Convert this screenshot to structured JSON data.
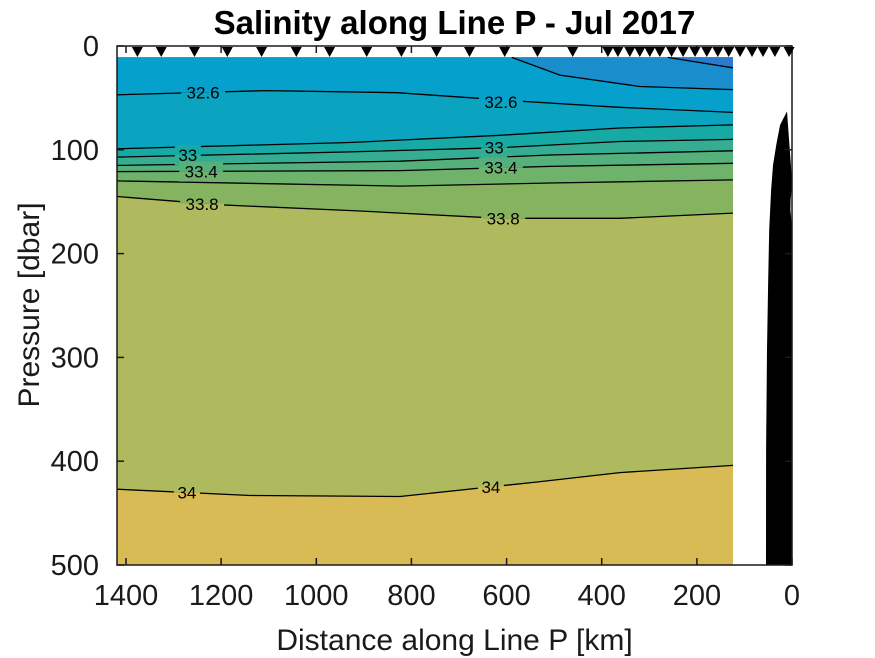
{
  "title": "Salinity along Line P - Jul 2017",
  "xlabel": "Distance along Line P [km]",
  "ylabel": "Pressure [dbar]",
  "chart_data": {
    "type": "filled-contour",
    "title": "Salinity along Line P - Jul 2017",
    "xlabel": "Distance along Line P [km]",
    "ylabel": "Pressure [dbar]",
    "xlim": [
      1400,
      0
    ],
    "ylim": [
      0,
      500
    ],
    "x_axis_reversed": true,
    "y_axis_reversed": true,
    "grid": false,
    "colorbar": false,
    "x_ticks": [
      {
        "label": "1400",
        "km": 1400
      },
      {
        "label": "1200",
        "km": 1200
      },
      {
        "label": "1000",
        "km": 1000
      },
      {
        "label": "800",
        "km": 800
      },
      {
        "label": "600",
        "km": 600
      },
      {
        "label": "400",
        "km": 400
      },
      {
        "label": "200",
        "km": 200
      },
      {
        "label": "0",
        "km": 0
      }
    ],
    "y_ticks": [
      {
        "label": "0",
        "dbar": 0
      },
      {
        "label": "100",
        "dbar": 100
      },
      {
        "label": "200",
        "dbar": 200
      },
      {
        "label": "300",
        "dbar": 300
      },
      {
        "label": "400",
        "dbar": 400
      },
      {
        "label": "500",
        "dbar": 500
      }
    ],
    "contour_interval": 0.2,
    "surface_min_dbar": 11,
    "coast_data_gap_km": 124,
    "station_marker": "filled-down-triangle",
    "station_distances_km": [
      1376,
      1326,
      1256,
      1187,
      1115,
      1042,
      972,
      894,
      821,
      747,
      678,
      604,
      535,
      461,
      387,
      366,
      341,
      320,
      299,
      278,
      253,
      229,
      204,
      179,
      156,
      133,
      109,
      84,
      61,
      36,
      6
    ],
    "bands": [
      {
        "min": null,
        "max": 32.2,
        "color": "#2b7ace"
      },
      {
        "min": 32.2,
        "max": 32.4,
        "color": "#1a8ecd"
      },
      {
        "min": 32.4,
        "max": 32.6,
        "color": "#06a0cc"
      },
      {
        "min": 32.6,
        "max": 32.8,
        "color": "#0aa3c0"
      },
      {
        "min": 32.8,
        "max": 33,
        "color": "#17aaa4"
      },
      {
        "min": 33,
        "max": 33.2,
        "color": "#35ad92"
      },
      {
        "min": 33.2,
        "max": 33.4,
        "color": "#55b07c"
      },
      {
        "min": 33.4,
        "max": 33.6,
        "color": "#6eb26c"
      },
      {
        "min": 33.6,
        "max": 33.8,
        "color": "#85b35f"
      },
      {
        "min": 33.8,
        "max": 34,
        "color": "#afba5e"
      },
      {
        "min": 34,
        "max": null,
        "color": "#d8bb55"
      }
    ],
    "contours": [
      {
        "level": 34,
        "closure": "top",
        "points": [
          [
            1419,
            427
          ],
          [
            1139,
            433
          ],
          [
            824,
            434
          ],
          [
            536,
            420
          ],
          [
            362,
            411
          ],
          [
            124,
            404
          ]
        ]
      },
      {
        "level": 33.8,
        "closure": "top",
        "points": [
          [
            1419,
            145
          ],
          [
            1203,
            153
          ],
          [
            908,
            159
          ],
          [
            614,
            166
          ],
          [
            362,
            166
          ],
          [
            124,
            161
          ]
        ]
      },
      {
        "level": 33.6,
        "closure": "top",
        "points": [
          [
            1419,
            130
          ],
          [
            824,
            135
          ],
          [
            509,
            132
          ],
          [
            124,
            129
          ]
        ]
      },
      {
        "level": 33.4,
        "closure": "top",
        "points": [
          [
            1419,
            121
          ],
          [
            824,
            120
          ],
          [
            509,
            116
          ],
          [
            124,
            113
          ]
        ]
      },
      {
        "level": 33.2,
        "closure": "top",
        "points": [
          [
            1419,
            115
          ],
          [
            824,
            111
          ],
          [
            509,
            105
          ],
          [
            124,
            101
          ]
        ]
      },
      {
        "level": 33,
        "closure": "top",
        "points": [
          [
            1419,
            107
          ],
          [
            929,
            102
          ],
          [
            614,
            98
          ],
          [
            362,
            92
          ],
          [
            124,
            90
          ]
        ]
      },
      {
        "level": 32.8,
        "closure": "top",
        "points": [
          [
            1419,
            99
          ],
          [
            929,
            93
          ],
          [
            614,
            86
          ],
          [
            362,
            79
          ],
          [
            124,
            76
          ]
        ]
      },
      {
        "level": 32.6,
        "closure": "top",
        "points": [
          [
            1419,
            47
          ],
          [
            1104,
            43
          ],
          [
            830,
            45
          ],
          [
            578,
            53
          ],
          [
            368,
            59
          ],
          [
            124,
            64
          ]
        ]
      },
      {
        "level": 32.4,
        "closure": "top-right",
        "points": [
          [
            589,
            11
          ],
          [
            488,
            28
          ],
          [
            320,
            39
          ],
          [
            124,
            42
          ]
        ]
      },
      {
        "level": 32.2,
        "closure": "top-right",
        "points": [
          [
            261,
            11
          ],
          [
            193,
            16
          ],
          [
            124,
            21
          ]
        ]
      }
    ],
    "contour_labels": [
      {
        "text": "32.6",
        "km": 1238,
        "dbar": 45
      },
      {
        "text": "32.6",
        "km": 612,
        "dbar": 54
      },
      {
        "text": "33",
        "km": 1270,
        "dbar": 105
      },
      {
        "text": "33",
        "km": 626,
        "dbar": 98
      },
      {
        "text": "33.4",
        "km": 1242,
        "dbar": 121
      },
      {
        "text": "33.4",
        "km": 612,
        "dbar": 117
      },
      {
        "text": "33.8",
        "km": 1240,
        "dbar": 152
      },
      {
        "text": "33.8",
        "km": 607,
        "dbar": 166
      },
      {
        "text": "34",
        "km": 1272,
        "dbar": 430
      },
      {
        "text": "34",
        "km": 633,
        "dbar": 425
      }
    ],
    "bathymetry_color": "#000000",
    "bathymetry_outline_km_dbar": [
      [
        10.5,
        63
      ],
      [
        25,
        76
      ],
      [
        33,
        95
      ],
      [
        40,
        115
      ],
      [
        44,
        139
      ],
      [
        48,
        177
      ],
      [
        50,
        225
      ],
      [
        52.5,
        293
      ],
      [
        54.5,
        389
      ],
      [
        54.7,
        500
      ],
      [
        0.4,
        500
      ],
      [
        0.4,
        176
      ],
      [
        1.5,
        167
      ],
      [
        3.3,
        158
      ],
      [
        3.0,
        148
      ],
      [
        0.7,
        138
      ],
      [
        0.9,
        124
      ]
    ],
    "axis_color": "#1a1a1a",
    "contour_line_color": "#000000",
    "station_marker_color": "#000000"
  }
}
